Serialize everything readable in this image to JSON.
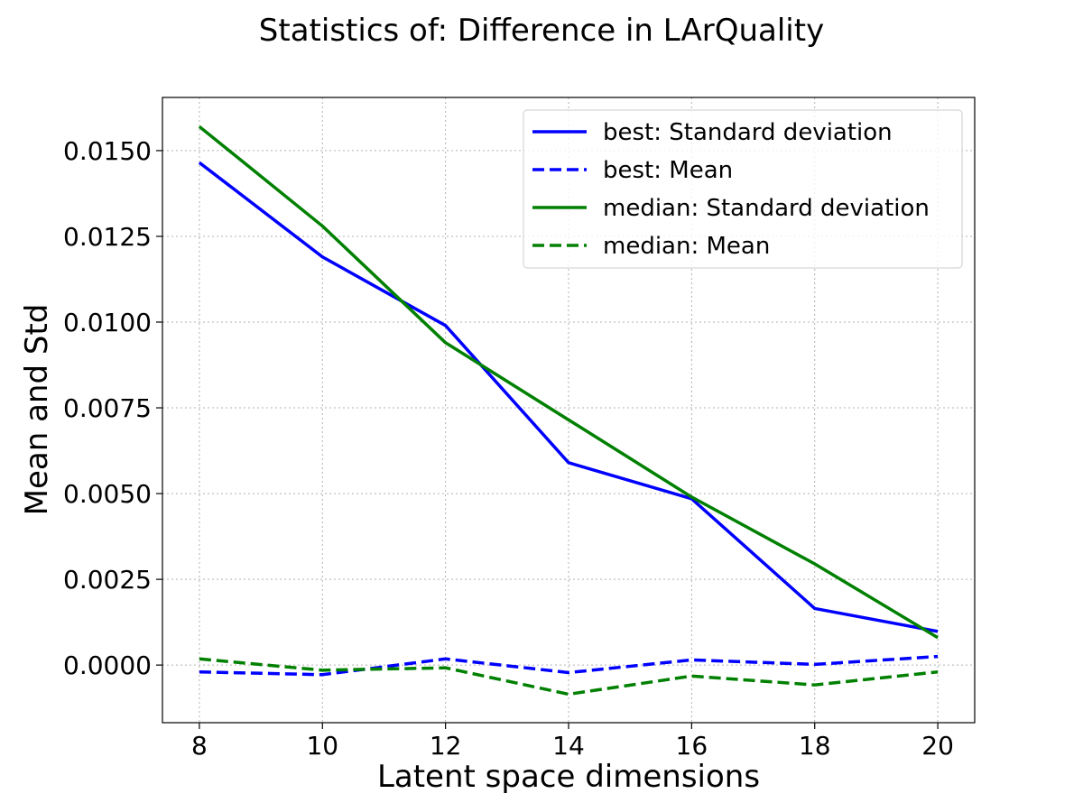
{
  "chart_data": {
    "type": "line",
    "title": "Statistics of: Difference in LArQuality",
    "xlabel": "Latent space dimensions",
    "ylabel": "Mean and Std",
    "x": [
      8,
      10,
      12,
      14,
      16,
      18,
      20
    ],
    "xlim": [
      7.4,
      20.6
    ],
    "ylim": [
      -0.00168,
      0.01655
    ],
    "xticks": [
      "8",
      "10",
      "12",
      "14",
      "16",
      "18",
      "20"
    ],
    "yticks": [
      "0.0000",
      "0.0025",
      "0.0050",
      "0.0075",
      "0.0100",
      "0.0125",
      "0.0150"
    ],
    "grid": true,
    "legend_position": "top-right",
    "series": [
      {
        "name": "best: Standard deviation",
        "color": "#0000ff",
        "style": "solid",
        "values": [
          0.01465,
          0.0119,
          0.0099,
          0.0059,
          0.00485,
          0.00165,
          0.00098
        ]
      },
      {
        "name": "best: Mean",
        "color": "#0000ff",
        "style": "dashed",
        "values": [
          -0.0002,
          -0.00028,
          0.00018,
          -0.00022,
          0.00015,
          2e-05,
          0.00025
        ]
      },
      {
        "name": "median: Standard deviation",
        "color": "#008000",
        "style": "solid",
        "values": [
          0.0157,
          0.0128,
          0.0094,
          0.00715,
          0.0049,
          0.00295,
          0.0008
        ]
      },
      {
        "name": "median: Mean",
        "color": "#008000",
        "style": "dashed",
        "values": [
          0.00018,
          -0.00015,
          -8e-05,
          -0.00085,
          -0.00032,
          -0.00058,
          -0.0002
        ]
      }
    ]
  }
}
